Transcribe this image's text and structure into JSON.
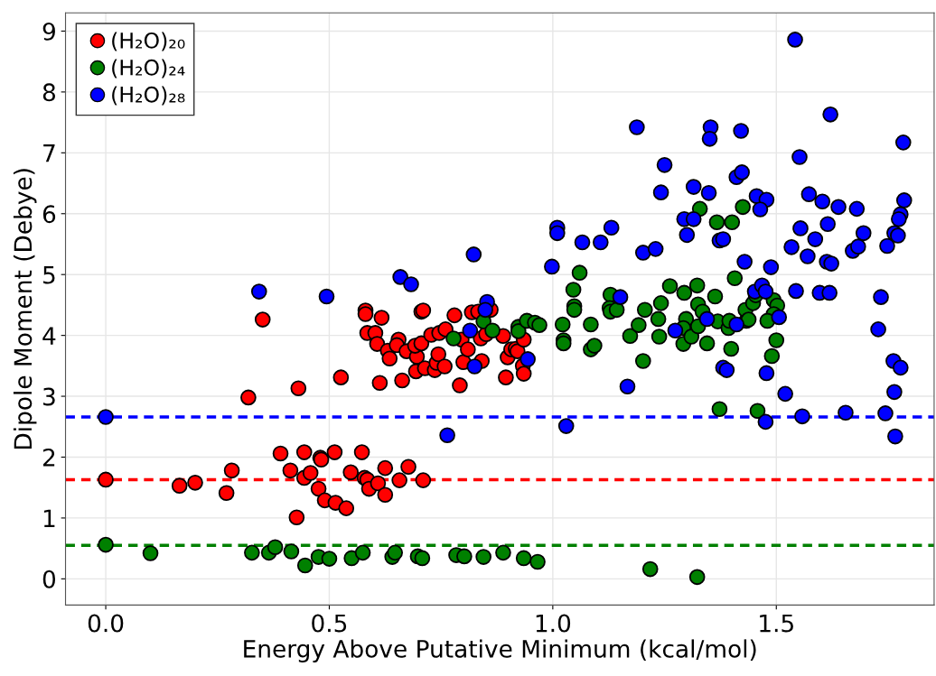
{
  "chart_data": {
    "type": "scatter",
    "xlabel": "Energy Above Putative Minimum (kcal/mol)",
    "ylabel": "Dipole Moment (Debye)",
    "xlim": [
      -0.09,
      1.853
    ],
    "ylim": [
      -0.43,
      9.3
    ],
    "xticks": [
      {
        "value": 0,
        "label": "0.0"
      },
      {
        "value": 0.5,
        "label": "0.5"
      },
      {
        "value": 1,
        "label": "1.0"
      },
      {
        "value": 1.5,
        "label": "1.5"
      }
    ],
    "yticks": [
      0,
      1,
      2,
      3,
      4,
      5,
      6,
      7,
      8,
      9
    ],
    "grid": true,
    "legend": "top left",
    "marker": "circle",
    "ref_lines": [
      {
        "axis": "y",
        "value": 2.66,
        "color": "#0000ff",
        "line_style": "dashed"
      },
      {
        "axis": "y",
        "value": 1.63,
        "color": "#ff0000",
        "line_style": "dashed"
      },
      {
        "axis": "y",
        "value": 0.55,
        "color": "#008000",
        "line_style": "dashed"
      }
    ],
    "series": [
      {
        "name": "(H₂O)₂₀",
        "color": "#ff0000",
        "x": [
          0,
          0.165,
          0.2,
          0.27,
          0.282,
          0.319,
          0.351,
          0.431,
          0.427,
          0.391,
          0.444,
          0.413,
          0.444,
          0.458,
          0.48,
          0.482,
          0.476,
          0.49,
          0.512,
          0.514,
          0.526,
          0.538,
          0.548,
          0.573,
          0.579,
          0.585,
          0.589,
          0.609,
          0.625,
          0.625,
          0.657,
          0.677,
          0.71,
          0.581,
          0.581,
          0.617,
          0.585,
          0.603,
          0.607,
          0.613,
          0.631,
          0.635,
          0.655,
          0.651,
          0.663,
          0.673,
          0.696,
          0.692,
          0.706,
          0.694,
          0.706,
          0.71,
          0.714,
          0.728,
          0.736,
          0.74,
          0.744,
          0.746,
          0.758,
          0.76,
          0.78,
          0.792,
          0.796,
          0.8,
          0.81,
          0.819,
          0.833,
          0.841,
          0.839,
          0.851,
          0.861,
          0.889,
          0.895,
          0.899,
          0.907,
          0.917,
          0.921,
          0.935,
          0.933,
          0.935
        ],
        "values": [
          1.63,
          1.53,
          1.58,
          1.41,
          1.78,
          2.98,
          4.26,
          3.13,
          1.01,
          2.06,
          2.08,
          1.78,
          1.66,
          1.74,
          1.99,
          1.96,
          1.48,
          1.29,
          2.08,
          1.25,
          3.31,
          1.16,
          1.75,
          2.08,
          1.66,
          1.63,
          1.48,
          1.57,
          1.82,
          1.38,
          1.62,
          1.84,
          1.62,
          4.41,
          4.35,
          4.29,
          4.04,
          4.04,
          3.86,
          3.22,
          3.75,
          3.62,
          3.93,
          3.84,
          3.26,
          3.74,
          3.65,
          3.83,
          3.87,
          3.41,
          4.39,
          4.41,
          3.46,
          4.01,
          3.43,
          3.55,
          3.69,
          4.04,
          3.49,
          4.1,
          4.33,
          3.18,
          3.93,
          3.56,
          3.77,
          4.38,
          4.39,
          3.58,
          3.95,
          4.02,
          4.42,
          3.99,
          3.31,
          3.64,
          3.77,
          3.78,
          3.74,
          3.93,
          3.5,
          3.37
        ]
      },
      {
        "name": "(H₂O)₂₄",
        "color": "#008000",
        "x": [
          0,
          0.1,
          0.327,
          0.365,
          0.379,
          0.415,
          0.446,
          0.476,
          0.5,
          0.55,
          0.575,
          0.641,
          0.647,
          0.698,
          0.708,
          0.784,
          0.802,
          0.845,
          0.889,
          0.935,
          0.966,
          0.845,
          0.778,
          0.865,
          0.923,
          0.923,
          0.942,
          0.96,
          0.97,
          1.022,
          1.024,
          1.024,
          1.046,
          1.048,
          1.048,
          1.06,
          1.085,
          1.085,
          1.093,
          1.129,
          1.127,
          1.129,
          1.143,
          1.173,
          1.192,
          1.202,
          1.206,
          1.236,
          1.238,
          1.242,
          1.262,
          1.294,
          1.298,
          1.292,
          1.292,
          1.31,
          1.323,
          1.325,
          1.335,
          1.325,
          1.345,
          1.363,
          1.369,
          1.393,
          1.395,
          1.399,
          1.373,
          1.407,
          1.433,
          1.431,
          1.448,
          1.458,
          1.218,
          1.323,
          1.329,
          1.367,
          1.401,
          1.425,
          1.454,
          1.438,
          1.494,
          1.502,
          1.494,
          1.48,
          1.5,
          1.49
        ],
        "values": [
          0.56,
          0.42,
          0.43,
          0.43,
          0.52,
          0.45,
          0.22,
          0.36,
          0.33,
          0.34,
          0.43,
          0.36,
          0.43,
          0.37,
          0.34,
          0.39,
          0.37,
          0.36,
          0.43,
          0.34,
          0.28,
          4.23,
          3.95,
          4.08,
          4.14,
          4.07,
          4.24,
          4.21,
          4.17,
          4.18,
          3.92,
          3.87,
          4.75,
          4.48,
          4.42,
          5.03,
          4.18,
          3.77,
          3.83,
          4.67,
          4.45,
          4.39,
          4.42,
          3.99,
          4.17,
          3.58,
          4.42,
          4.27,
          3.98,
          4.53,
          4.81,
          4.7,
          4.27,
          4.12,
          3.86,
          3.98,
          4.82,
          4.51,
          4.39,
          4.15,
          3.87,
          4.64,
          4.23,
          4.12,
          4.24,
          3.78,
          2.79,
          4.94,
          4.24,
          4.42,
          4.53,
          2.76,
          0.16,
          0.03,
          6.08,
          5.86,
          5.86,
          6.11,
          4.66,
          4.26,
          4.58,
          4.49,
          4.35,
          4.24,
          3.92,
          3.66
        ]
      },
      {
        "name": "(H₂O)₂₈",
        "color": "#0000ff",
        "x": [
          0,
          0.343,
          0.494,
          0.659,
          0.683,
          0.853,
          0.849,
          0.815,
          0.825,
          0.944,
          0.764,
          0.823,
          1.03,
          0.998,
          1.01,
          1.01,
          1.066,
          1.107,
          1.131,
          1.202,
          1.23,
          1.242,
          1.315,
          1.349,
          1.294,
          1.315,
          1.3,
          1.373,
          1.381,
          1.429,
          1.151,
          1.274,
          1.345,
          1.411,
          1.381,
          1.389,
          1.167,
          1.452,
          1.188,
          1.353,
          1.351,
          1.421,
          1.25,
          1.411,
          1.423,
          1.542,
          1.621,
          1.784,
          1.552,
          1.456,
          1.478,
          1.464,
          1.573,
          1.603,
          1.639,
          1.68,
          1.786,
          1.778,
          1.774,
          1.695,
          1.554,
          1.615,
          1.587,
          1.534,
          1.57,
          1.613,
          1.623,
          1.671,
          1.683,
          1.764,
          1.772,
          1.748,
          1.488,
          1.544,
          1.597,
          1.619,
          1.734,
          1.468,
          1.476,
          1.506,
          1.728,
          1.478,
          1.52,
          1.762,
          1.778,
          1.764,
          1.476,
          1.558,
          1.655,
          1.744,
          1.766
        ],
        "values": [
          2.66,
          4.72,
          4.64,
          4.96,
          4.84,
          4.55,
          4.42,
          4.08,
          3.49,
          3.61,
          2.36,
          5.33,
          2.51,
          5.13,
          5.77,
          5.68,
          5.53,
          5.53,
          5.77,
          5.36,
          5.42,
          6.35,
          6.44,
          6.34,
          5.91,
          5.91,
          5.65,
          5.56,
          5.58,
          5.21,
          4.63,
          4.08,
          4.27,
          4.18,
          3.47,
          3.43,
          3.16,
          4.72,
          7.42,
          7.42,
          7.23,
          7.36,
          6.8,
          6.6,
          6.68,
          8.86,
          7.63,
          7.17,
          6.93,
          6.29,
          6.23,
          6.07,
          6.32,
          6.2,
          6.11,
          6.08,
          6.22,
          5.99,
          5.91,
          5.68,
          5.76,
          5.83,
          5.58,
          5.45,
          5.3,
          5.21,
          5.18,
          5.39,
          5.46,
          5.68,
          5.64,
          5.47,
          5.12,
          4.73,
          4.7,
          4.7,
          4.63,
          4.82,
          4.72,
          4.3,
          4.1,
          3.38,
          3.04,
          3.58,
          3.47,
          3.07,
          2.58,
          2.67,
          2.73,
          2.72,
          2.34
        ]
      }
    ]
  }
}
